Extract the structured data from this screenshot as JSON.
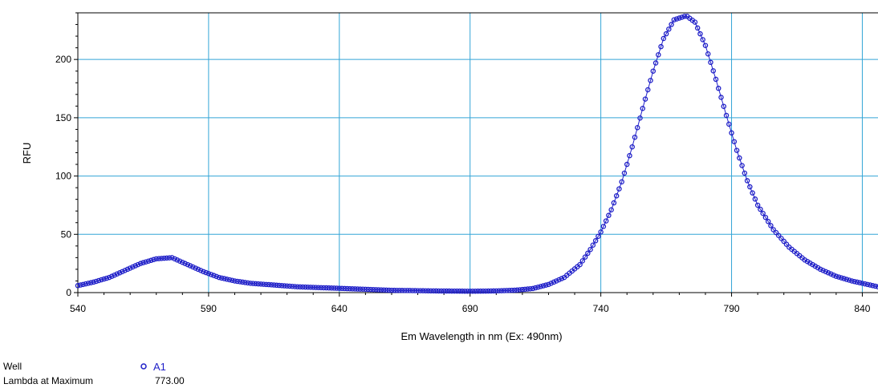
{
  "chart_data": {
    "type": "scatter",
    "xlabel": "Em Wavelength in nm  (Ex: 490nm)",
    "ylabel": "RFU",
    "xlim": [
      540,
      846
    ],
    "ylim": [
      0,
      240
    ],
    "x_ticks": [
      540,
      590,
      640,
      690,
      740,
      790,
      840
    ],
    "y_ticks": [
      0,
      50,
      100,
      150,
      200
    ],
    "grid": true,
    "grid_color": "#33a5d6",
    "series": [
      {
        "name": "A1",
        "color": "#1f1fc8",
        "marker": "open-circle",
        "x": [
          540,
          546,
          552,
          558,
          564,
          570,
          576,
          582,
          588,
          594,
          600,
          606,
          612,
          618,
          624,
          630,
          636,
          642,
          648,
          654,
          660,
          666,
          672,
          678,
          684,
          690,
          696,
          702,
          708,
          714,
          720,
          726,
          732,
          736,
          740,
          744,
          748,
          752,
          756,
          760,
          764,
          768,
          772,
          773,
          776,
          780,
          784,
          788,
          792,
          796,
          800,
          806,
          812,
          818,
          824,
          830,
          836,
          842,
          846
        ],
        "y": [
          6,
          9,
          13,
          19,
          25,
          29,
          30,
          24,
          18,
          13,
          10,
          8,
          7,
          6,
          5,
          4.5,
          4,
          3.5,
          3,
          2.5,
          2,
          1.8,
          1.6,
          1.4,
          1.3,
          1.2,
          1.3,
          1.6,
          2.2,
          3.5,
          7,
          13,
          24,
          37,
          52,
          71,
          95,
          125,
          158,
          190,
          218,
          234,
          237,
          237,
          232,
          212,
          183,
          152,
          122,
          96,
          75,
          54,
          39,
          28,
          20,
          14,
          10,
          7,
          5
        ]
      }
    ]
  },
  "footer": {
    "well_label": "Well",
    "well_value": "A1",
    "lambda_label": "Lambda at Maximum",
    "lambda_value": "773.00"
  }
}
